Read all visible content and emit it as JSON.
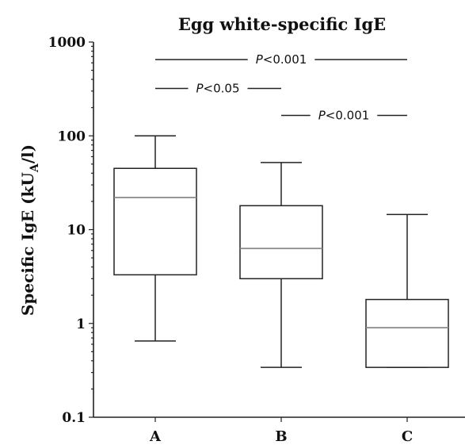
{
  "chart_data": {
    "type": "box",
    "title": "Egg white-specific IgE",
    "ylabel": "Specific IgE (kU",
    "ylabel_sub": "A",
    "ylabel_end": "/l)",
    "xlabel": "",
    "yscale": "log",
    "ylim": [
      0.1,
      1000
    ],
    "y_ticks": [
      0.1,
      1,
      10,
      100,
      1000
    ],
    "y_tick_labels": [
      "0.1",
      "1",
      "10",
      "100",
      "1000"
    ],
    "categories": [
      "A",
      "B",
      "C"
    ],
    "boxes": [
      {
        "label": "A",
        "whisker_low": 0.65,
        "q1": 3.3,
        "median": 22,
        "q3": 45,
        "whisker_high": 100
      },
      {
        "label": "B",
        "whisker_low": 0.34,
        "q1": 3.0,
        "median": 6.3,
        "q3": 18,
        "whisker_high": 52
      },
      {
        "label": "C",
        "whisker_low": 0.34,
        "q1": 0.34,
        "median": 0.9,
        "q3": 1.8,
        "whisker_high": 14.5
      }
    ],
    "annotations": [
      {
        "from": "A",
        "to": "C",
        "y": 650,
        "p": "P",
        "rest": "<0.001"
      },
      {
        "from": "A",
        "to": "B",
        "y": 320,
        "p": "P",
        "rest": "<0.05"
      },
      {
        "from": "B",
        "to": "C",
        "y": 165,
        "p": "P",
        "rest": "<0.001"
      }
    ],
    "colors": {
      "axis": "#222222",
      "median": "#888888",
      "box_fill": "#ffffff"
    }
  }
}
